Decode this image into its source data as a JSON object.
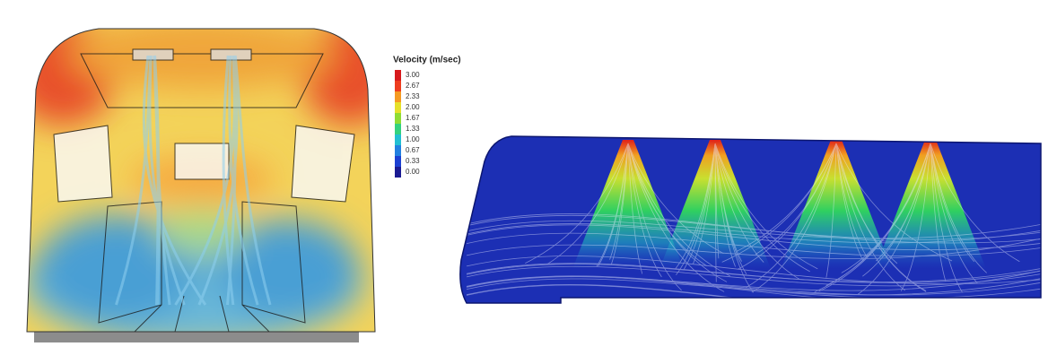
{
  "legend": {
    "title": "Velocity (m/sec)",
    "labels": [
      "3.00",
      "2.67",
      "2.33",
      "2.00",
      "1.67",
      "1.33",
      "1.00",
      "0.67",
      "0.33",
      "0.00"
    ],
    "colors": [
      "#d7191c",
      "#ee3d1f",
      "#f59a22",
      "#e6e02a",
      "#8fdc34",
      "#34d27e",
      "#22bfd2",
      "#2280e0",
      "#1c40d2",
      "#1a1a92"
    ]
  }
}
